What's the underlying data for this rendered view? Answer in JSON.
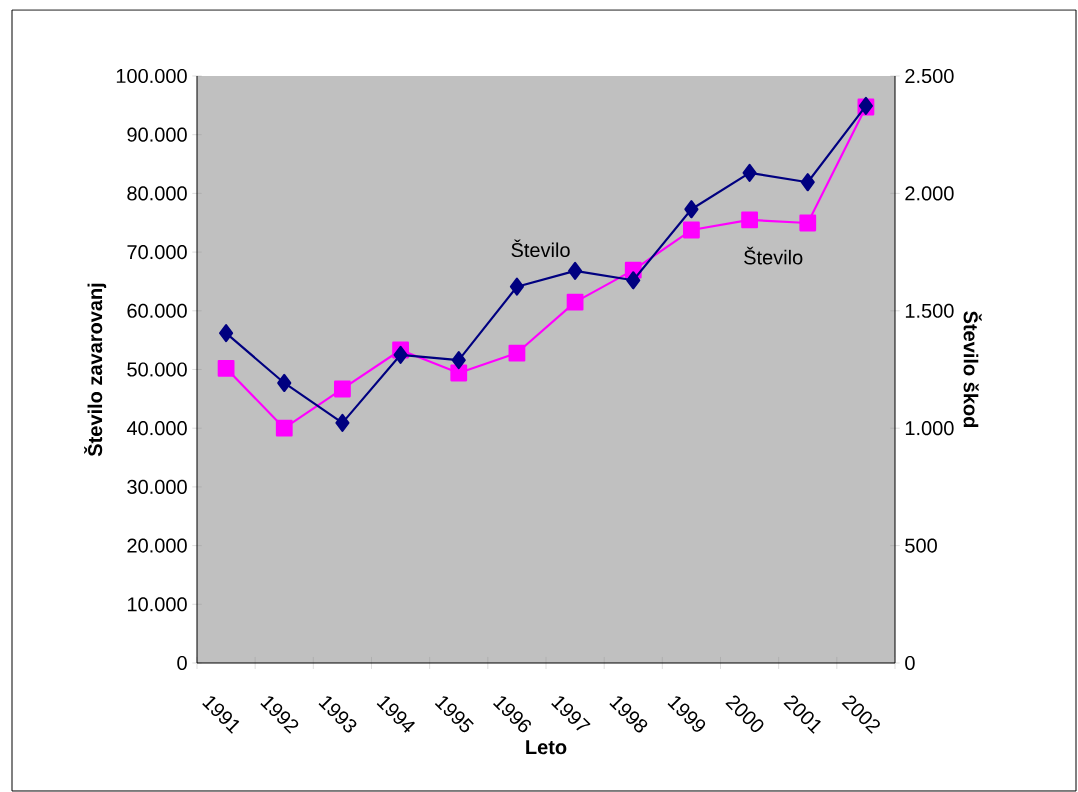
{
  "chart_data": {
    "type": "line",
    "xlabel": "Leto",
    "ylabel": "Število zavarovanj",
    "y2label": "Število škod",
    "categories": [
      "1991",
      "1992",
      "1993",
      "1994",
      "1995",
      "1996",
      "1997",
      "1998",
      "1999",
      "2000",
      "2001",
      "2002"
    ],
    "series": [
      {
        "name": "Število",
        "color": "#000080",
        "marker": "diamond",
        "values": [
          56200,
          47700,
          40900,
          52500,
          51600,
          64100,
          66800,
          65200,
          77300,
          83500,
          81900,
          94900
        ]
      },
      {
        "name": "Število",
        "color": "#ff00ff",
        "marker": "square",
        "axis": "y2",
        "values": [
          1255,
          1000,
          1167,
          1333,
          1235,
          1320,
          1537,
          1673,
          1844,
          1887,
          1874,
          2368
        ]
      }
    ],
    "ylim": [
      0,
      100000
    ],
    "yticks": [
      0,
      {
        "value": 10000,
        "label": "10.000"
      },
      {
        "value": 20000,
        "label": "20.000"
      },
      {
        "value": 30000,
        "label": "30.000"
      },
      {
        "value": 40000,
        "label": "40.000"
      },
      {
        "value": 50000,
        "label": "50.000"
      },
      {
        "value": 60000,
        "label": "60.000"
      },
      {
        "value": 70000,
        "label": "70.000"
      },
      {
        "value": 80000,
        "label": "80.000"
      },
      {
        "value": 90000,
        "label": "90.000"
      },
      {
        "value": 100000,
        "label": "100.000"
      }
    ],
    "y2lim": [
      0,
      2500
    ],
    "y2ticks": [
      0,
      500,
      {
        "value": 1000,
        "label": "1.000"
      },
      {
        "value": 1500,
        "label": "1.500"
      },
      {
        "value": 2000,
        "label": "2.000"
      },
      {
        "value": 2500,
        "label": "2.500"
      }
    ],
    "grid": false
  }
}
